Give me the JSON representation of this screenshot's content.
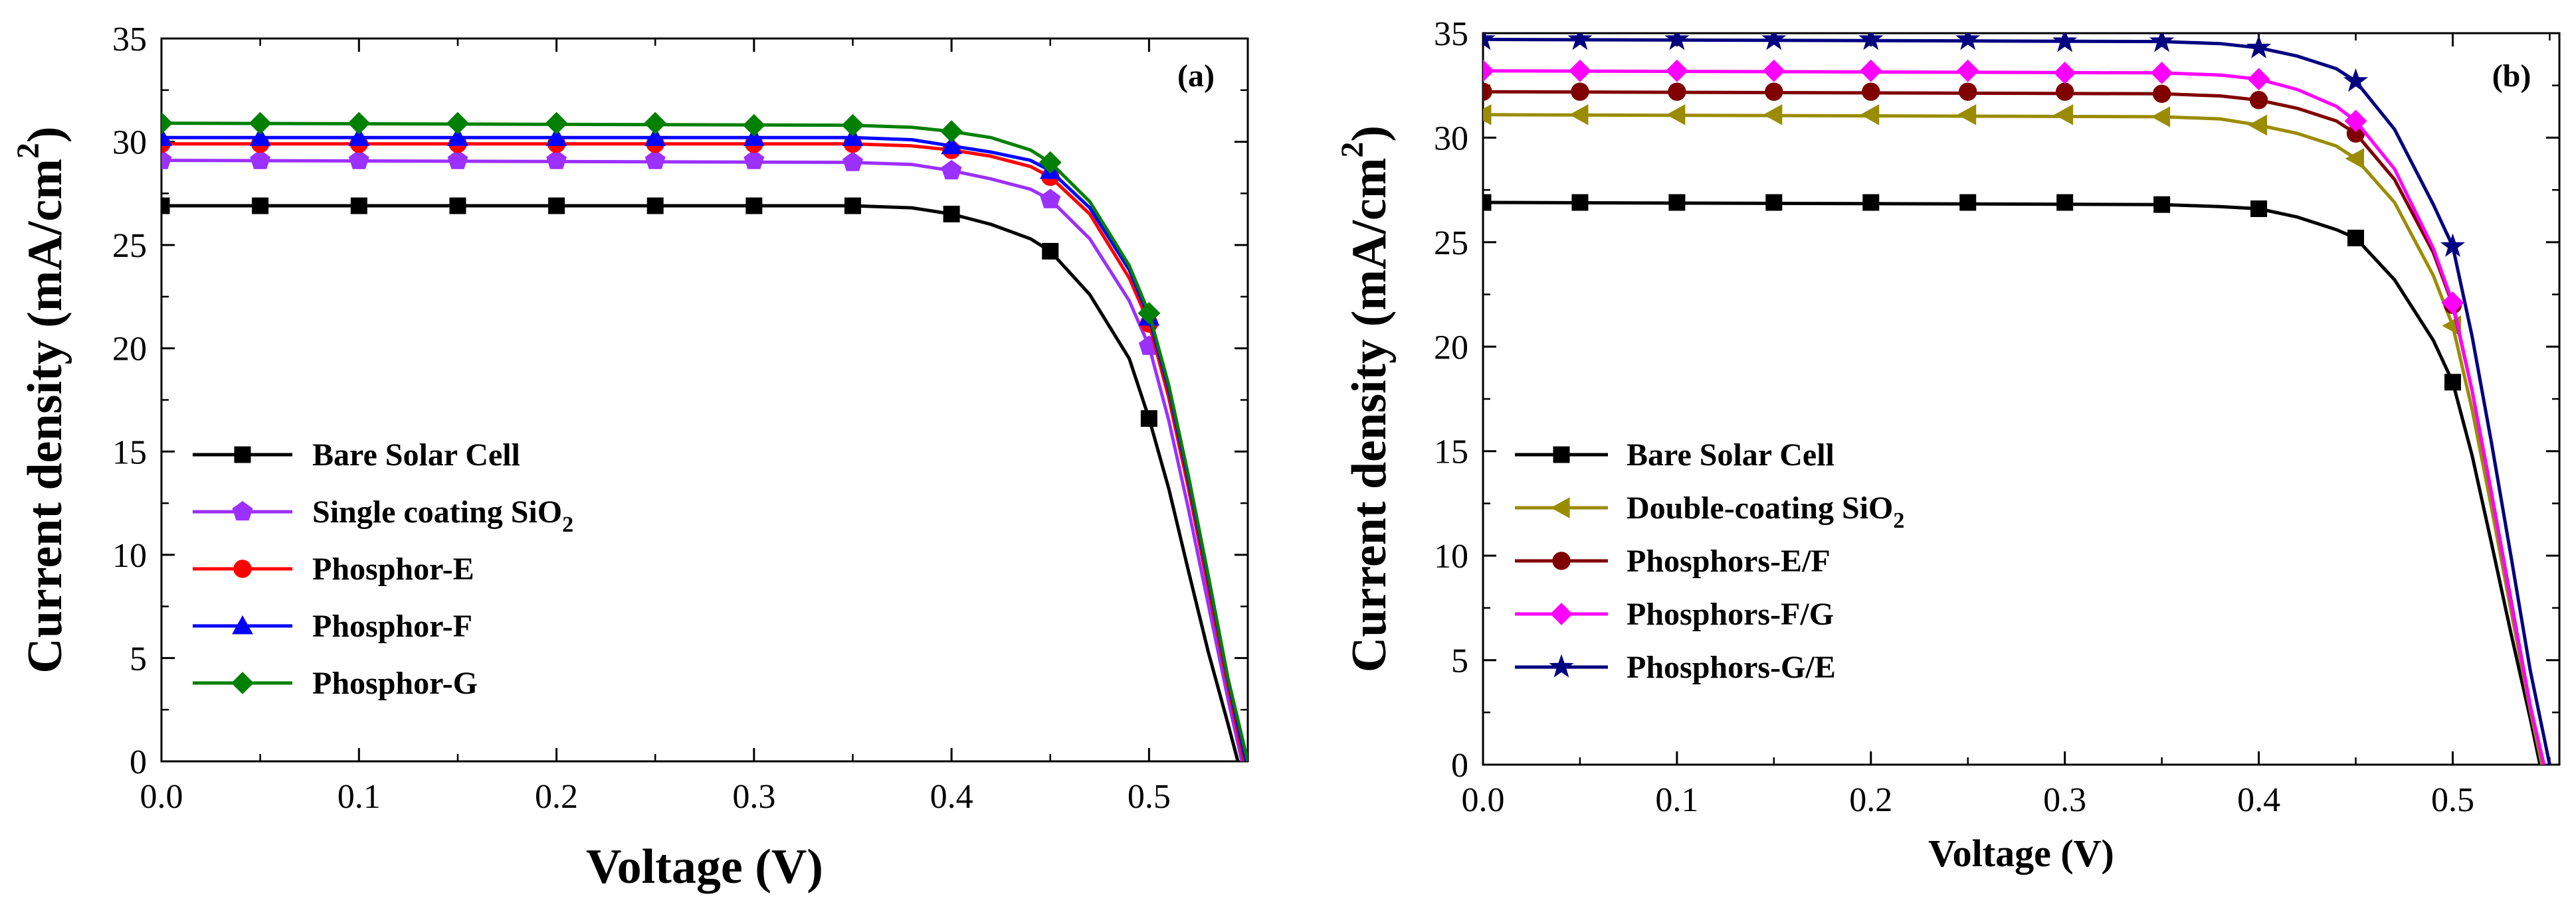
{
  "chart_data": [
    {
      "id": "a",
      "type": "line",
      "panel_label": "(a)",
      "xlabel": "Voltage (V)",
      "ylabel": "Current density (mA/cm",
      "ylabel_sup": "2",
      "ylabel_end": ")",
      "xlim": [
        0.0,
        0.55
      ],
      "ylim": [
        0,
        35
      ],
      "xticks": [
        "0.0",
        "0.1",
        "0.2",
        "0.3",
        "0.4",
        "0.5"
      ],
      "xtick_values": [
        0.0,
        0.1,
        0.2,
        0.3,
        0.4,
        0.5
      ],
      "yticks": [
        "0",
        "5",
        "10",
        "15",
        "20",
        "25",
        "30",
        "35"
      ],
      "ytick_values": [
        0,
        5,
        10,
        15,
        20,
        25,
        30,
        35
      ],
      "grid": false,
      "legend_position": "lower-left",
      "series": [
        {
          "name": "Bare Solar Cell",
          "name_sub": "",
          "color": "#000000",
          "marker": "square",
          "x": [
            0.0,
            0.05,
            0.1,
            0.15,
            0.2,
            0.25,
            0.3,
            0.35,
            0.4,
            0.45,
            0.5
          ],
          "y": [
            26.9,
            26.9,
            26.9,
            26.9,
            26.9,
            26.9,
            26.9,
            26.9,
            26.5,
            24.7,
            16.6
          ],
          "curve": [
            [
              0,
              26.9
            ],
            [
              0.35,
              26.9
            ],
            [
              0.38,
              26.8
            ],
            [
              0.4,
              26.5
            ],
            [
              0.42,
              26.0
            ],
            [
              0.44,
              25.3
            ],
            [
              0.45,
              24.7
            ],
            [
              0.47,
              22.6
            ],
            [
              0.49,
              19.5
            ],
            [
              0.5,
              16.6
            ],
            [
              0.51,
              13.2
            ],
            [
              0.52,
              9.2
            ],
            [
              0.53,
              5.3
            ],
            [
              0.54,
              1.8
            ],
            [
              0.545,
              0
            ]
          ]
        },
        {
          "name": "Single coating SiO",
          "name_sub": "2",
          "color": "#9b30ff",
          "marker": "pentagon",
          "x": [
            0.0,
            0.05,
            0.1,
            0.15,
            0.2,
            0.25,
            0.3,
            0.35,
            0.4,
            0.45,
            0.5
          ],
          "y": [
            29.1,
            29.1,
            29.1,
            29.1,
            29.1,
            29.1,
            29.1,
            29.0,
            28.6,
            27.2,
            20.1
          ],
          "curve": [
            [
              0,
              29.1
            ],
            [
              0.35,
              29.0
            ],
            [
              0.38,
              28.9
            ],
            [
              0.4,
              28.6
            ],
            [
              0.42,
              28.2
            ],
            [
              0.44,
              27.7
            ],
            [
              0.45,
              27.2
            ],
            [
              0.47,
              25.3
            ],
            [
              0.49,
              22.3
            ],
            [
              0.5,
              20.1
            ],
            [
              0.51,
              16.5
            ],
            [
              0.52,
              12.2
            ],
            [
              0.53,
              7.6
            ],
            [
              0.54,
              3.0
            ],
            [
              0.547,
              0
            ]
          ]
        },
        {
          "name": "Phosphor-E",
          "name_sub": "",
          "color": "#ff0000",
          "marker": "circle",
          "x": [
            0.0,
            0.05,
            0.1,
            0.15,
            0.2,
            0.25,
            0.3,
            0.35,
            0.4,
            0.45,
            0.5
          ],
          "y": [
            29.9,
            29.9,
            29.9,
            29.9,
            29.9,
            29.9,
            29.9,
            29.9,
            29.6,
            28.3,
            21.2
          ],
          "curve": [
            [
              0,
              29.9
            ],
            [
              0.35,
              29.9
            ],
            [
              0.38,
              29.8
            ],
            [
              0.4,
              29.6
            ],
            [
              0.42,
              29.3
            ],
            [
              0.44,
              28.8
            ],
            [
              0.45,
              28.3
            ],
            [
              0.47,
              26.5
            ],
            [
              0.49,
              23.4
            ],
            [
              0.5,
              21.2
            ],
            [
              0.51,
              17.6
            ],
            [
              0.52,
              13.2
            ],
            [
              0.53,
              8.4
            ],
            [
              0.54,
              3.6
            ],
            [
              0.548,
              0
            ]
          ]
        },
        {
          "name": "Phosphor-F",
          "name_sub": "",
          "color": "#0000ff",
          "marker": "triangle",
          "x": [
            0.0,
            0.05,
            0.1,
            0.15,
            0.2,
            0.25,
            0.3,
            0.35,
            0.4,
            0.45,
            0.5
          ],
          "y": [
            30.2,
            30.2,
            30.2,
            30.2,
            30.2,
            30.2,
            30.2,
            30.2,
            29.8,
            28.6,
            21.5
          ],
          "curve": [
            [
              0,
              30.2
            ],
            [
              0.35,
              30.2
            ],
            [
              0.38,
              30.1
            ],
            [
              0.4,
              29.8
            ],
            [
              0.42,
              29.5
            ],
            [
              0.44,
              29.1
            ],
            [
              0.45,
              28.6
            ],
            [
              0.47,
              26.8
            ],
            [
              0.49,
              23.8
            ],
            [
              0.5,
              21.5
            ],
            [
              0.51,
              18.0
            ],
            [
              0.52,
              13.6
            ],
            [
              0.53,
              8.8
            ],
            [
              0.54,
              3.9
            ],
            [
              0.549,
              0
            ]
          ]
        },
        {
          "name": "Phosphor-G",
          "name_sub": "",
          "color": "#008000",
          "marker": "diamond",
          "x": [
            0.0,
            0.05,
            0.1,
            0.15,
            0.2,
            0.25,
            0.3,
            0.35,
            0.4,
            0.45,
            0.5
          ],
          "y": [
            30.9,
            30.9,
            30.9,
            30.9,
            30.9,
            30.9,
            30.8,
            30.8,
            30.5,
            29.0,
            21.7
          ],
          "curve": [
            [
              0,
              30.9
            ],
            [
              0.35,
              30.8
            ],
            [
              0.38,
              30.7
            ],
            [
              0.4,
              30.5
            ],
            [
              0.42,
              30.2
            ],
            [
              0.44,
              29.6
            ],
            [
              0.45,
              29.0
            ],
            [
              0.47,
              27.1
            ],
            [
              0.49,
              24.0
            ],
            [
              0.5,
              21.7
            ],
            [
              0.51,
              18.2
            ],
            [
              0.52,
              13.8
            ],
            [
              0.53,
              9.0
            ],
            [
              0.54,
              4.0
            ],
            [
              0.55,
              0
            ]
          ]
        }
      ]
    },
    {
      "id": "b",
      "type": "line",
      "panel_label": "(b)",
      "xlabel": "Voltage (V)",
      "ylabel": "Current density (mA/cm",
      "ylabel_sup": "2",
      "ylabel_end": ")",
      "xlim": [
        0.0,
        0.555
      ],
      "ylim": [
        0,
        35
      ],
      "xticks": [
        "0.0",
        "0.1",
        "0.2",
        "0.3",
        "0.4",
        "0.5"
      ],
      "xtick_values": [
        0.0,
        0.1,
        0.2,
        0.3,
        0.4,
        0.5
      ],
      "yticks": [
        "0",
        "5",
        "10",
        "15",
        "20",
        "25",
        "30",
        "35"
      ],
      "ytick_values": [
        0,
        5,
        10,
        15,
        20,
        25,
        30,
        35
      ],
      "grid": false,
      "legend_position": "lower-left",
      "series": [
        {
          "name": "Bare Solar Cell",
          "name_sub": "",
          "color": "#000000",
          "marker": "square",
          "x": [
            0.0,
            0.05,
            0.1,
            0.15,
            0.2,
            0.25,
            0.3,
            0.35,
            0.4,
            0.45,
            0.5
          ],
          "y": [
            26.9,
            26.9,
            26.9,
            26.9,
            26.9,
            26.9,
            26.9,
            26.8,
            26.6,
            25.2,
            18.3
          ],
          "curve": [
            [
              0,
              26.9
            ],
            [
              0.35,
              26.8
            ],
            [
              0.38,
              26.7
            ],
            [
              0.4,
              26.6
            ],
            [
              0.42,
              26.2
            ],
            [
              0.44,
              25.6
            ],
            [
              0.45,
              25.2
            ],
            [
              0.47,
              23.2
            ],
            [
              0.49,
              20.3
            ],
            [
              0.5,
              18.3
            ],
            [
              0.51,
              14.8
            ],
            [
              0.52,
              10.6
            ],
            [
              0.53,
              6.3
            ],
            [
              0.54,
              2.2
            ],
            [
              0.545,
              0
            ]
          ]
        },
        {
          "name": "Double-coating SiO",
          "name_sub": "2",
          "color": "#9a8c00",
          "marker": "triangle-left",
          "x": [
            0.0,
            0.05,
            0.1,
            0.15,
            0.2,
            0.25,
            0.3,
            0.35,
            0.4,
            0.45,
            0.5
          ],
          "y": [
            31.1,
            31.1,
            31.1,
            31.1,
            31.1,
            31.1,
            31.1,
            31.0,
            30.6,
            29.0,
            21.0
          ],
          "curve": [
            [
              0,
              31.1
            ],
            [
              0.35,
              31.0
            ],
            [
              0.38,
              30.9
            ],
            [
              0.4,
              30.6
            ],
            [
              0.42,
              30.2
            ],
            [
              0.44,
              29.6
            ],
            [
              0.45,
              29.0
            ],
            [
              0.47,
              26.9
            ],
            [
              0.49,
              23.4
            ],
            [
              0.5,
              21.0
            ],
            [
              0.51,
              17.0
            ],
            [
              0.52,
              12.3
            ],
            [
              0.53,
              7.4
            ],
            [
              0.54,
              2.6
            ],
            [
              0.546,
              0
            ]
          ]
        },
        {
          "name": "Phosphors-E/F",
          "name_sub": "",
          "color": "#800000",
          "marker": "circle",
          "x": [
            0.0,
            0.05,
            0.1,
            0.15,
            0.2,
            0.25,
            0.3,
            0.35,
            0.4,
            0.45,
            0.5
          ],
          "y": [
            32.2,
            32.2,
            32.2,
            32.2,
            32.2,
            32.2,
            32.2,
            32.1,
            31.8,
            30.2,
            22.0
          ],
          "curve": [
            [
              0,
              32.2
            ],
            [
              0.35,
              32.1
            ],
            [
              0.38,
              32.0
            ],
            [
              0.4,
              31.8
            ],
            [
              0.42,
              31.4
            ],
            [
              0.44,
              30.8
            ],
            [
              0.45,
              30.2
            ],
            [
              0.47,
              28.0
            ],
            [
              0.49,
              24.5
            ],
            [
              0.5,
              22.0
            ],
            [
              0.51,
              17.9
            ],
            [
              0.52,
              13.0
            ],
            [
              0.53,
              7.9
            ],
            [
              0.54,
              2.8
            ],
            [
              0.547,
              0
            ]
          ]
        },
        {
          "name": "Phosphors-F/G",
          "name_sub": "",
          "color": "#ff00ff",
          "marker": "diamond",
          "x": [
            0.0,
            0.05,
            0.1,
            0.15,
            0.2,
            0.25,
            0.3,
            0.35,
            0.4,
            0.45,
            0.5
          ],
          "y": [
            33.2,
            33.2,
            33.2,
            33.2,
            33.2,
            33.2,
            33.1,
            33.1,
            32.8,
            30.8,
            22.1
          ],
          "curve": [
            [
              0,
              33.2
            ],
            [
              0.35,
              33.1
            ],
            [
              0.38,
              33.0
            ],
            [
              0.4,
              32.8
            ],
            [
              0.42,
              32.3
            ],
            [
              0.44,
              31.5
            ],
            [
              0.45,
              30.8
            ],
            [
              0.47,
              28.5
            ],
            [
              0.49,
              24.7
            ],
            [
              0.5,
              22.1
            ],
            [
              0.51,
              17.9
            ],
            [
              0.52,
              13.0
            ],
            [
              0.53,
              7.8
            ],
            [
              0.54,
              2.8
            ],
            [
              0.547,
              0
            ]
          ]
        },
        {
          "name": "Phosphors-G/E",
          "name_sub": "",
          "color": "#000080",
          "marker": "star",
          "x": [
            0.0,
            0.05,
            0.1,
            0.15,
            0.2,
            0.25,
            0.3,
            0.35,
            0.4,
            0.45,
            0.5
          ],
          "y": [
            34.7,
            34.7,
            34.7,
            34.7,
            34.7,
            34.7,
            34.6,
            34.6,
            34.3,
            32.7,
            24.8
          ],
          "curve": [
            [
              0,
              34.7
            ],
            [
              0.35,
              34.6
            ],
            [
              0.38,
              34.5
            ],
            [
              0.4,
              34.3
            ],
            [
              0.42,
              33.9
            ],
            [
              0.44,
              33.3
            ],
            [
              0.45,
              32.7
            ],
            [
              0.47,
              30.4
            ],
            [
              0.49,
              26.8
            ],
            [
              0.5,
              24.8
            ],
            [
              0.51,
              20.5
            ],
            [
              0.52,
              15.4
            ],
            [
              0.53,
              10.0
            ],
            [
              0.54,
              4.5
            ],
            [
              0.55,
              0
            ]
          ]
        }
      ]
    }
  ]
}
